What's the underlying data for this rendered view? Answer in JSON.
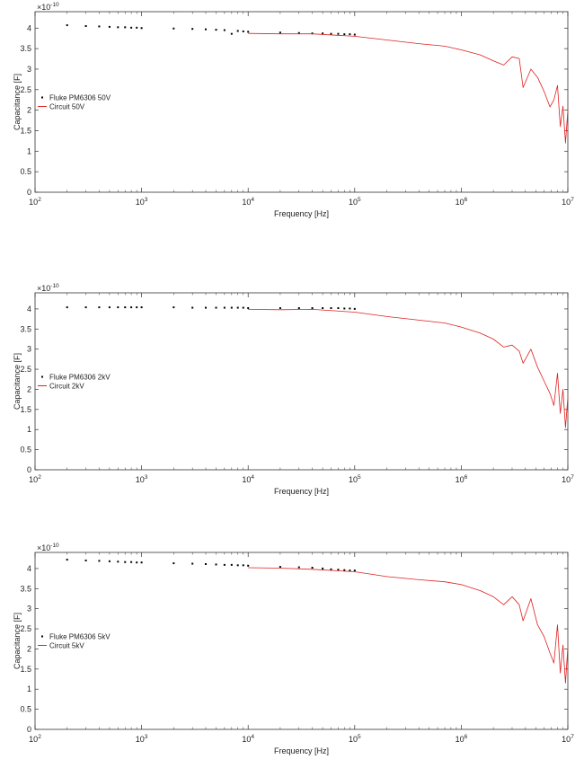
{
  "chart_data": [
    {
      "type": "scatter",
      "scale_label": "×10",
      "scale_exp": "-10",
      "xlabel": "Frequency [Hz]",
      "ylabel": "Capacitance [F]",
      "xscale": "log",
      "xlim": [
        100,
        10000000
      ],
      "ylim": [
        0,
        4.4
      ],
      "y_multiplier": 1e-10,
      "xtick_base": "10",
      "xtick_exps": [
        "2",
        "3",
        "4",
        "5",
        "6",
        "7"
      ],
      "yticks": [
        "0",
        "0.5",
        "1",
        "1.5",
        "2",
        "2.5",
        "3",
        "3.5",
        "4"
      ],
      "grid": false,
      "legend_placement": "left",
      "series": [
        {
          "name": "Fluke PM6306 50V",
          "style": "markers",
          "color": "#000000",
          "x": [
            200,
            300,
            400,
            500,
            600,
            700,
            800,
            900,
            1000,
            2000,
            3000,
            4000,
            5000,
            6000,
            7000,
            8000,
            9000,
            10000,
            20000,
            30000,
            40000,
            50000,
            60000,
            70000,
            80000,
            90000,
            100000
          ],
          "y": [
            4.07,
            4.05,
            4.04,
            4.03,
            4.02,
            4.02,
            4.01,
            4.01,
            4.0,
            3.99,
            3.98,
            3.97,
            3.96,
            3.95,
            3.86,
            3.93,
            3.92,
            3.91,
            3.89,
            3.88,
            3.87,
            3.87,
            3.86,
            3.86,
            3.85,
            3.85,
            3.84
          ]
        },
        {
          "name": "Circuit 50V",
          "style": "line",
          "color": "#e02020",
          "x": [
            10000,
            20000,
            40000,
            100000,
            200000,
            400000,
            700000,
            1000000,
            1500000,
            2000000,
            2500000,
            3000000,
            3500000,
            3800000,
            4500000,
            5200000,
            6000000,
            6800000,
            7400000,
            8000000,
            8500000,
            9000000,
            9500000,
            10000000
          ],
          "y": [
            3.87,
            3.86,
            3.86,
            3.8,
            3.71,
            3.62,
            3.56,
            3.47,
            3.35,
            3.2,
            3.1,
            3.3,
            3.26,
            2.55,
            3.0,
            2.8,
            2.45,
            2.08,
            2.25,
            2.6,
            1.6,
            2.1,
            1.2,
            2.0
          ]
        }
      ]
    },
    {
      "type": "scatter",
      "scale_label": "×10",
      "scale_exp": "-10",
      "xlabel": "Frequency [Hz]",
      "ylabel": "Capacitance [F]",
      "xscale": "log",
      "xlim": [
        100,
        10000000
      ],
      "ylim": [
        0,
        4.4
      ],
      "y_multiplier": 1e-10,
      "xtick_base": "10",
      "xtick_exps": [
        "2",
        "3",
        "4",
        "5",
        "6",
        "7"
      ],
      "yticks": [
        "0",
        "0.5",
        "1",
        "1.5",
        "2",
        "2.5",
        "3",
        "3.5",
        "4"
      ],
      "grid": false,
      "legend_placement": "left",
      "series": [
        {
          "name": "Fluke PM6306 2kV",
          "style": "markers",
          "color": "#000000",
          "x": [
            200,
            300,
            400,
            500,
            600,
            700,
            800,
            900,
            1000,
            2000,
            3000,
            4000,
            5000,
            6000,
            7000,
            8000,
            9000,
            10000,
            20000,
            30000,
            40000,
            50000,
            60000,
            70000,
            80000,
            90000,
            100000
          ],
          "y": [
            4.04,
            4.04,
            4.04,
            4.04,
            4.04,
            4.04,
            4.04,
            4.04,
            4.04,
            4.04,
            4.03,
            4.03,
            4.03,
            4.03,
            4.03,
            4.03,
            4.03,
            4.02,
            4.02,
            4.02,
            4.02,
            4.02,
            4.02,
            4.02,
            4.01,
            4.01,
            4.0
          ]
        },
        {
          "name": "Circuit 2kV",
          "style": "line",
          "color": "#e02020",
          "x": [
            10000,
            20000,
            40000,
            100000,
            200000,
            400000,
            700000,
            1000000,
            1500000,
            2000000,
            2500000,
            3000000,
            3500000,
            3800000,
            4500000,
            5200000,
            6000000,
            6800000,
            7400000,
            8000000,
            8500000,
            9000000,
            9500000,
            10000000
          ],
          "y": [
            3.99,
            3.98,
            3.99,
            3.92,
            3.81,
            3.72,
            3.65,
            3.55,
            3.4,
            3.25,
            3.05,
            3.1,
            2.95,
            2.65,
            3.0,
            2.55,
            2.2,
            1.9,
            1.6,
            2.4,
            1.4,
            2.0,
            1.05,
            1.8
          ]
        }
      ]
    },
    {
      "type": "scatter",
      "scale_label": "×10",
      "scale_exp": "-10",
      "xlabel": "Frequency [Hz]",
      "ylabel": "Capacitance [F]",
      "xscale": "log",
      "xlim": [
        100,
        10000000
      ],
      "ylim": [
        0,
        4.4
      ],
      "y_multiplier": 1e-10,
      "xtick_base": "10",
      "xtick_exps": [
        "2",
        "3",
        "4",
        "5",
        "6",
        "7"
      ],
      "yticks": [
        "0",
        "0.5",
        "1",
        "1.5",
        "2",
        "2.5",
        "3",
        "3.5",
        "4"
      ],
      "grid": false,
      "legend_placement": "left",
      "series": [
        {
          "name": "Fluke PM6306 5kV",
          "style": "markers",
          "color": "#000000",
          "x": [
            200,
            300,
            400,
            500,
            600,
            700,
            800,
            900,
            1000,
            2000,
            3000,
            4000,
            5000,
            6000,
            7000,
            8000,
            9000,
            10000,
            20000,
            30000,
            40000,
            50000,
            60000,
            70000,
            80000,
            90000,
            100000
          ],
          "y": [
            4.22,
            4.2,
            4.19,
            4.18,
            4.17,
            4.16,
            4.16,
            4.15,
            4.15,
            4.13,
            4.12,
            4.11,
            4.1,
            4.09,
            4.09,
            4.08,
            4.08,
            4.07,
            4.04,
            4.03,
            4.02,
            4.0,
            3.98,
            3.97,
            3.96,
            3.95,
            3.95
          ]
        },
        {
          "name": "Circuit 5kV",
          "style": "line",
          "color": "#e02020",
          "x": [
            10000,
            20000,
            40000,
            100000,
            200000,
            400000,
            700000,
            1000000,
            1500000,
            2000000,
            2500000,
            3000000,
            3500000,
            3800000,
            4500000,
            5200000,
            6000000,
            6800000,
            7400000,
            8000000,
            8500000,
            9000000,
            9500000,
            10000000
          ],
          "y": [
            4.02,
            4.01,
            3.98,
            3.92,
            3.8,
            3.72,
            3.67,
            3.6,
            3.45,
            3.3,
            3.1,
            3.3,
            3.1,
            2.7,
            3.25,
            2.6,
            2.3,
            1.9,
            1.65,
            2.6,
            1.4,
            2.1,
            1.15,
            2.05
          ]
        }
      ]
    }
  ]
}
